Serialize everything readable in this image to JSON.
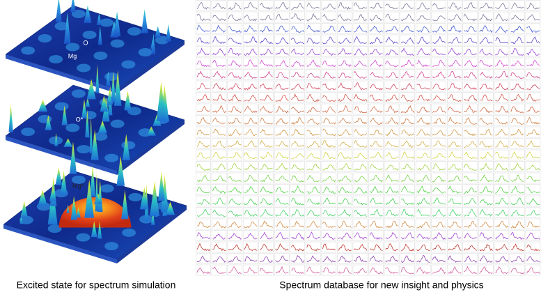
{
  "left_panel": {
    "labels": [
      "O",
      "Mg",
      "O*",
      "Mg*"
    ],
    "caption": "Excited state for spectrum simulation"
  },
  "right_panel": {
    "caption": "Spectrum database for new insight and physics"
  }
}
